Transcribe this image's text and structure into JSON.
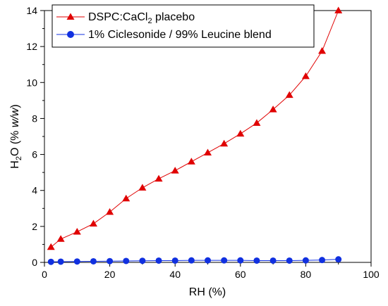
{
  "chart_data": {
    "type": "line",
    "xlabel": "RH (%)",
    "ylabel": {
      "main": "H",
      "sub": "2",
      "rest": "O (% ",
      "italic": "w/w",
      "close": ")"
    },
    "xlim": [
      0,
      100
    ],
    "ylim": [
      0,
      14
    ],
    "xticks": [
      "0",
      "20",
      "40",
      "60",
      "80",
      "100"
    ],
    "yticks": [
      "0",
      "2",
      "4",
      "6",
      "8",
      "10",
      "12",
      "14"
    ],
    "legend_position": "top-left",
    "series": [
      {
        "name": {
          "main": "DSPC:CaCl",
          "sub": "2",
          "rest": " placebo"
        },
        "color": "#e00000",
        "marker": "triangle",
        "x": [
          2,
          5,
          10,
          15,
          20,
          25,
          30,
          35,
          40,
          45,
          50,
          55,
          60,
          65,
          70,
          75,
          80,
          85,
          90
        ],
        "y": [
          0.85,
          1.3,
          1.7,
          2.15,
          2.8,
          3.55,
          4.15,
          4.65,
          5.1,
          5.6,
          6.1,
          6.6,
          7.15,
          7.75,
          8.5,
          9.3,
          10.35,
          11.75,
          14.0
        ]
      },
      {
        "name": {
          "main": "1% Ciclesonide / 99% Leucine blend",
          "sub": "",
          "rest": ""
        },
        "color": "#1030e0",
        "marker": "circle",
        "x": [
          2,
          5,
          10,
          15,
          20,
          25,
          30,
          35,
          40,
          45,
          50,
          55,
          60,
          65,
          70,
          75,
          80,
          85,
          90
        ],
        "y": [
          0.03,
          0.04,
          0.05,
          0.06,
          0.07,
          0.08,
          0.09,
          0.1,
          0.1,
          0.11,
          0.11,
          0.11,
          0.11,
          0.1,
          0.1,
          0.1,
          0.11,
          0.13,
          0.17
        ]
      }
    ]
  }
}
